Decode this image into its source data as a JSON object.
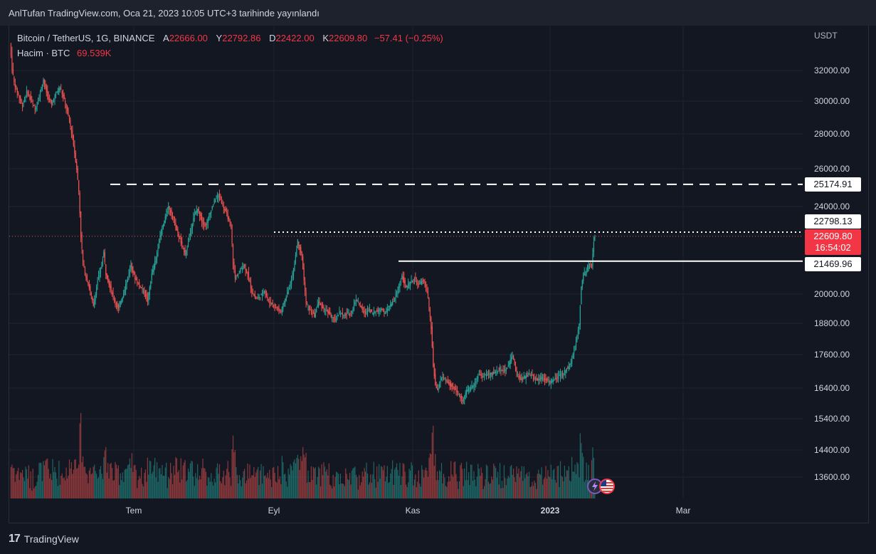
{
  "header": {
    "title": "AnlTufan TradingView.com, Oca 21, 2023 10:05 UTC+3 tarihinde yayınlandı"
  },
  "legend": {
    "symbol": "Bitcoin / TetherUS, 1G, BINANCE",
    "open_label": "A",
    "open": "22666.00",
    "high_label": "Y",
    "high": "22792.86",
    "low_label": "D",
    "low": "22422.00",
    "close_label": "K",
    "close": "22609.80",
    "change": "−57.41 (−0.25%)",
    "volume_label": "Hacim · BTC",
    "volume": "69.539K"
  },
  "price_axis": {
    "currency": "USDT",
    "ticks": [
      "32000.00",
      "30000.00",
      "28000.00",
      "26000.00",
      "24000.00",
      "20000.00",
      "18800.00",
      "17600.00",
      "16400.00",
      "15400.00",
      "14400.00",
      "13600.00"
    ]
  },
  "price_tags": {
    "resistance": "25174.91",
    "high_line": "22798.13",
    "current_price": "22609.80",
    "countdown": "16:54:02",
    "support": "21469.96"
  },
  "time_axis": {
    "labels": [
      "Tem",
      "Eyl",
      "Kas",
      "2023",
      "Mar"
    ]
  },
  "footer": {
    "brand": "TradingView"
  },
  "colors": {
    "up": "#26a69a",
    "down": "#ef5350",
    "background": "#131722",
    "grid": "#1f2330"
  },
  "chart_data": {
    "type": "candlestick",
    "ylabel": "USDT",
    "y_ticks": [
      32000,
      30000,
      28000,
      26000,
      24000,
      20000,
      18800,
      17600,
      16400,
      15400,
      14400,
      13600
    ],
    "x_tick_labels": [
      "Tem",
      "Eyl",
      "Kas",
      "2023",
      "Mar"
    ],
    "horizontal_levels": [
      {
        "value": 25174.91,
        "style": "dashed"
      },
      {
        "value": 22798.13,
        "style": "dotted"
      },
      {
        "value": 21469.96,
        "style": "solid"
      }
    ],
    "last_price": 22609.8,
    "close_path": [
      [
        0,
        33000
      ],
      [
        4,
        31200
      ],
      [
        8,
        30400
      ],
      [
        12,
        29700
      ],
      [
        16,
        30600
      ],
      [
        20,
        30100
      ],
      [
        24,
        29500
      ],
      [
        28,
        30300
      ],
      [
        32,
        31400
      ],
      [
        36,
        30300
      ],
      [
        40,
        29800
      ],
      [
        44,
        30500
      ],
      [
        48,
        30900
      ],
      [
        52,
        30100
      ],
      [
        56,
        29100
      ],
      [
        60,
        27800
      ],
      [
        64,
        26000
      ],
      [
        66,
        24800
      ],
      [
        68,
        22600
      ],
      [
        70,
        21400
      ],
      [
        72,
        20900
      ],
      [
        76,
        20300
      ],
      [
        80,
        19500
      ],
      [
        84,
        20600
      ],
      [
        88,
        21300
      ],
      [
        90,
        21900
      ],
      [
        92,
        20900
      ],
      [
        96,
        20300
      ],
      [
        100,
        19800
      ],
      [
        104,
        19400
      ],
      [
        108,
        19900
      ],
      [
        112,
        20600
      ],
      [
        116,
        21300
      ],
      [
        120,
        20700
      ],
      [
        124,
        20400
      ],
      [
        128,
        20200
      ],
      [
        132,
        19700
      ],
      [
        136,
        20900
      ],
      [
        140,
        21600
      ],
      [
        144,
        22600
      ],
      [
        148,
        23300
      ],
      [
        152,
        24000
      ],
      [
        156,
        23500
      ],
      [
        160,
        22900
      ],
      [
        164,
        22300
      ],
      [
        168,
        21800
      ],
      [
        172,
        22500
      ],
      [
        176,
        23500
      ],
      [
        180,
        23900
      ],
      [
        184,
        23300
      ],
      [
        188,
        23100
      ],
      [
        192,
        23700
      ],
      [
        196,
        24300
      ],
      [
        200,
        24600
      ],
      [
        204,
        24100
      ],
      [
        208,
        23600
      ],
      [
        212,
        23100
      ],
      [
        214,
        21400
      ],
      [
        216,
        20700
      ],
      [
        220,
        21000
      ],
      [
        224,
        21300
      ],
      [
        228,
        20900
      ],
      [
        232,
        20100
      ],
      [
        236,
        19800
      ],
      [
        240,
        19900
      ],
      [
        244,
        20200
      ],
      [
        248,
        19700
      ],
      [
        252,
        19600
      ],
      [
        256,
        19400
      ],
      [
        260,
        19300
      ],
      [
        264,
        19800
      ],
      [
        268,
        20300
      ],
      [
        272,
        21100
      ],
      [
        276,
        22400
      ],
      [
        280,
        21700
      ],
      [
        282,
        20600
      ],
      [
        284,
        19600
      ],
      [
        288,
        19300
      ],
      [
        292,
        19100
      ],
      [
        296,
        19700
      ],
      [
        300,
        19400
      ],
      [
        304,
        19300
      ],
      [
        308,
        19100
      ],
      [
        312,
        18900
      ],
      [
        316,
        19300
      ],
      [
        320,
        19100
      ],
      [
        324,
        19200
      ],
      [
        328,
        19300
      ],
      [
        332,
        19800
      ],
      [
        336,
        19500
      ],
      [
        340,
        19200
      ],
      [
        344,
        19400
      ],
      [
        348,
        19200
      ],
      [
        352,
        19300
      ],
      [
        356,
        19400
      ],
      [
        360,
        19200
      ],
      [
        364,
        19500
      ],
      [
        368,
        19700
      ],
      [
        372,
        20200
      ],
      [
        376,
        20800
      ],
      [
        380,
        20300
      ],
      [
        384,
        20500
      ],
      [
        388,
        20700
      ],
      [
        392,
        20400
      ],
      [
        396,
        20600
      ],
      [
        400,
        20200
      ],
      [
        404,
        18600
      ],
      [
        406,
        17200
      ],
      [
        408,
        16500
      ],
      [
        410,
        16300
      ],
      [
        414,
        16800
      ],
      [
        418,
        16700
      ],
      [
        422,
        16500
      ],
      [
        426,
        16400
      ],
      [
        430,
        16200
      ],
      [
        434,
        16000
      ],
      [
        438,
        16300
      ],
      [
        442,
        16400
      ],
      [
        446,
        16600
      ],
      [
        450,
        16900
      ],
      [
        454,
        16800
      ],
      [
        458,
        16900
      ],
      [
        462,
        16900
      ],
      [
        466,
        17000
      ],
      [
        470,
        17100
      ],
      [
        474,
        17000
      ],
      [
        478,
        17200
      ],
      [
        482,
        17600
      ],
      [
        486,
        16900
      ],
      [
        490,
        16700
      ],
      [
        494,
        16800
      ],
      [
        498,
        16900
      ],
      [
        502,
        16800
      ],
      [
        506,
        16700
      ],
      [
        510,
        16800
      ],
      [
        514,
        16700
      ],
      [
        518,
        16600
      ],
      [
        522,
        16700
      ],
      [
        526,
        16800
      ],
      [
        530,
        16900
      ],
      [
        534,
        17100
      ],
      [
        538,
        17300
      ],
      [
        542,
        17900
      ],
      [
        546,
        18800
      ],
      [
        548,
        20300
      ],
      [
        550,
        20900
      ],
      [
        552,
        20900
      ],
      [
        554,
        21200
      ],
      [
        556,
        21400
      ],
      [
        558,
        21200
      ],
      [
        560,
        22400
      ],
      [
        561,
        22609
      ]
    ],
    "volume_scale": "relative"
  }
}
